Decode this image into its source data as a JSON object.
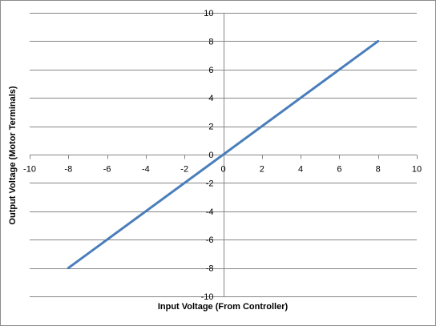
{
  "chart_data": {
    "type": "line",
    "title": "",
    "xlabel": "Input Voltage (From Controller)",
    "ylabel": "Output Voltage (Motor Terminals)",
    "xlim": [
      -10,
      10
    ],
    "ylim": [
      -10,
      10
    ],
    "x_ticks": [
      "-10",
      "-8",
      "-6",
      "-4",
      "-2",
      "0",
      "2",
      "4",
      "6",
      "8",
      "10"
    ],
    "y_ticks": [
      "10",
      "8",
      "6",
      "4",
      "2",
      "0",
      "-2",
      "-4",
      "-6",
      "-8",
      "-10"
    ],
    "grid": "horizontal major gridlines",
    "legend": "none",
    "series": [
      {
        "x": [
          -8,
          8
        ],
        "y": [
          -8,
          8
        ],
        "color": "#4a7ebb"
      }
    ],
    "colors": {
      "line": "#4a7ebb",
      "grid": "#868686",
      "axis": "#868686"
    }
  }
}
